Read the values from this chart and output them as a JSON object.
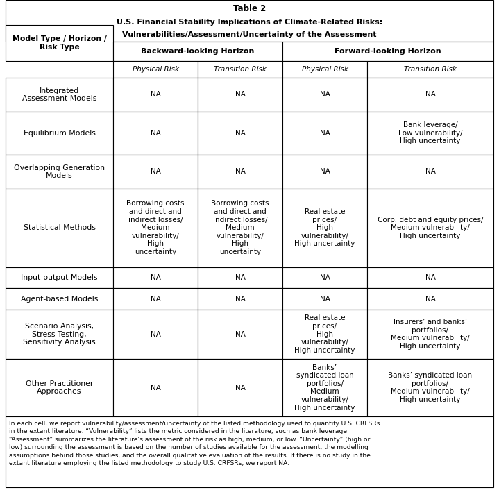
{
  "title_line1": "Table 2",
  "title_line2": "U.S. Financial Stability Implications of Climate-Related Risks:",
  "title_line3": "Vulnerabilities/Assessment/Uncertainty of the Assessment",
  "col_header_left": "Model Type / Horizon /\nRisk Type",
  "col_header_back": "Backward-looking Horizon",
  "col_header_fwd": "Forward-looking Horizon",
  "sub_phys1": "Physical Risk",
  "sub_trans1": "Transition Risk",
  "sub_phys2": "Physical Risk",
  "sub_trans2": "Transition Risk",
  "rows": [
    {
      "model": "Integrated\nAssessment Models",
      "bph": "NA",
      "btr": "NA",
      "fph": "NA",
      "ftr": "NA"
    },
    {
      "model": "Equilibrium Models",
      "bph": "NA",
      "btr": "NA",
      "fph": "NA",
      "ftr": "Bank leverage/\nLow vulnerability/\nHigh uncertainty"
    },
    {
      "model": "Overlapping Generation\nModels",
      "bph": "NA",
      "btr": "NA",
      "fph": "NA",
      "ftr": "NA"
    },
    {
      "model": "Statistical Methods",
      "bph": "Borrowing costs\nand direct and\nindirect losses/\nMedium\nvulnerability/\nHigh\nuncertainty",
      "btr": "Borrowing costs\nand direct and\nindirect losses/\nMedium\nvulnerability/\nHigh\nuncertainty",
      "fph": "Real estate\nprices/\nHigh\nvulnerability/\nHigh uncertainty",
      "ftr": "Corp. debt and equity prices/\nMedium vulnerability/\nHigh uncertainty"
    },
    {
      "model": "Input-output Models",
      "bph": "NA",
      "btr": "NA",
      "fph": "NA",
      "ftr": "NA"
    },
    {
      "model": "Agent-based Models",
      "bph": "NA",
      "btr": "NA",
      "fph": "NA",
      "ftr": "NA"
    },
    {
      "model": "Scenario Analysis,\nStress Testing,\nSensitivity Analysis",
      "bph": "NA",
      "btr": "NA",
      "fph": "Real estate\nprices/\nHigh\nvulnerability/\nHigh uncertainty",
      "ftr": "Insurers’ and banks’\nportfolios/\nMedium vulnerability/\nHigh uncertainty"
    },
    {
      "model": "Other Practitioner\nApproaches",
      "bph": "NA",
      "btr": "NA",
      "fph": "Banks’\nsyndicated loan\nportfolios/\nMedium\nvulnerability/\nHigh uncertainty",
      "ftr": "Banks’ syndicated loan\nportfolios/\nMedium vulnerability/\nHigh uncertainty"
    }
  ],
  "footnote": "In each cell, we report vulnerability/assessment/uncertainty of the listed methodology used to quantify U.S. CRFSRs\nin the extant literature. “Vulnerability” lists the metric considered in the literature, such as bank leverage.\n“Assessment” summarizes the literature’s assessment of the risk as high, medium, or low. “Uncertainty” (high or\nlow) surrounding the assessment is based on the number of studies available for the assessment, the modelling\nassumptions behind those studies, and the overall qualitative evaluation of the results. If there is no study in the\nextant literature employing the listed methodology to study U.S. CRFSRs, we report NA.",
  "fig_width": 7.19,
  "fig_height": 7.06,
  "dpi": 100
}
